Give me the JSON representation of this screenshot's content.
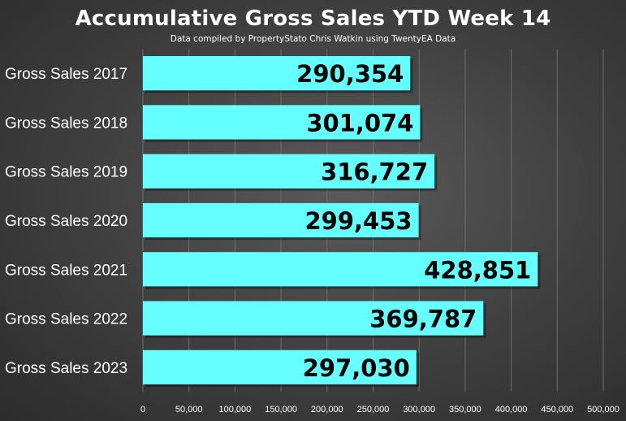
{
  "chart_data": {
    "type": "bar",
    "orientation": "horizontal",
    "title": "Accumulative Gross Sales YTD Week 14",
    "subtitle": "Data compiled by PropertyStato Chris Watkin using TwentyEA Data",
    "categories": [
      "Gross Sales 2017",
      "Gross Sales 2018",
      "Gross Sales 2019",
      "Gross Sales 2020",
      "Gross Sales 2021",
      "Gross Sales 2022",
      "Gross Sales 2023"
    ],
    "values": [
      290354,
      301074,
      316727,
      299453,
      428851,
      369787,
      297030
    ],
    "value_labels": [
      "290,354",
      "301,074",
      "316,727",
      "299,453",
      "428,851",
      "369,787",
      "297,030"
    ],
    "xlim": [
      0,
      500000
    ],
    "x_ticks": [
      0,
      50000,
      100000,
      150000,
      200000,
      250000,
      300000,
      350000,
      400000,
      450000,
      500000
    ],
    "x_tick_labels": [
      "0",
      "50,000",
      "100,000",
      "150,000",
      "200,000",
      "250,000",
      "300,000",
      "350,000",
      "400,000",
      "450,000",
      "500,000"
    ],
    "grid": "vertical",
    "legend": "none",
    "bar_color": "#66ffff",
    "background_color": "#444444"
  }
}
